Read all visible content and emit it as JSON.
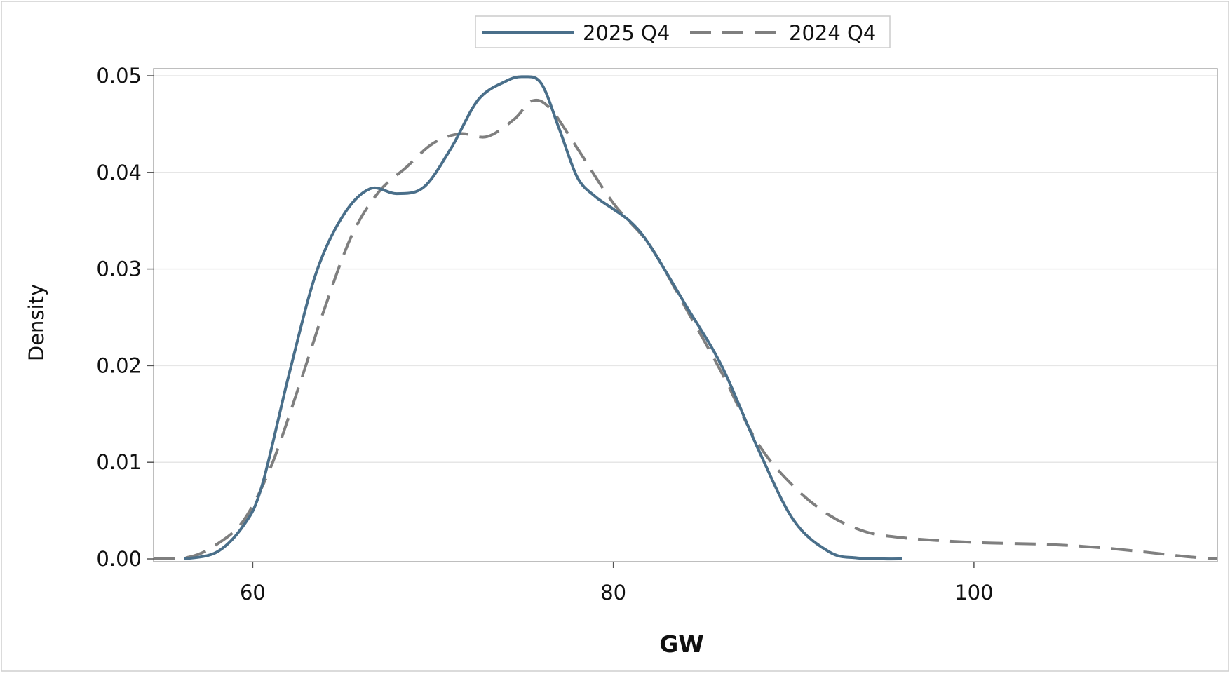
{
  "chart_data": {
    "type": "line",
    "title": "",
    "xlabel": "GW",
    "ylabel": "Density",
    "xlim": [
      54.5,
      113.5
    ],
    "ylim": [
      0,
      0.05
    ],
    "x_ticks": [
      60,
      80,
      100
    ],
    "x_tick_labels": [
      "60",
      "80",
      "100"
    ],
    "y_ticks": [
      0,
      0.01,
      0.02,
      0.03,
      0.04,
      0.05
    ],
    "y_tick_labels": [
      "0.00",
      "0.01",
      "0.02",
      "0.03",
      "0.04",
      "0.05"
    ],
    "grid": "horizontal",
    "legend_position": "top-center",
    "series": [
      {
        "name": "2025 Q4",
        "style": "solid",
        "color": "#4a6f8a",
        "x": [
          56.2,
          58,
          59.5,
          60.5,
          62,
          63.5,
          65,
          66.5,
          68,
          69.5,
          71,
          72.5,
          74,
          75,
          76,
          77,
          78,
          79,
          80,
          81,
          82,
          84,
          86,
          88,
          90,
          92,
          93.5,
          95,
          96
        ],
        "y": [
          0.0,
          0.0007,
          0.0035,
          0.0075,
          0.019,
          0.0295,
          0.0355,
          0.0383,
          0.0378,
          0.0385,
          0.0425,
          0.0475,
          0.0494,
          0.0499,
          0.0492,
          0.0445,
          0.0395,
          0.0375,
          0.0362,
          0.0348,
          0.0325,
          0.0263,
          0.02,
          0.0115,
          0.004,
          0.0007,
          0.0001,
          0.0,
          0.0
        ]
      },
      {
        "name": "2024 Q4",
        "style": "dashed",
        "color": "#7f7f7f",
        "x": [
          54.5,
          56.5,
          58,
          59.5,
          61,
          62.5,
          64,
          65.5,
          67,
          68.5,
          70,
          71.5,
          73,
          74.5,
          75.5,
          76.5,
          78,
          80,
          82,
          84,
          86,
          88,
          90,
          92,
          94,
          96,
          98,
          100,
          102,
          104,
          106,
          108,
          110,
          112,
          113.5
        ],
        "y": [
          0.0,
          0.0002,
          0.0015,
          0.004,
          0.0095,
          0.0175,
          0.026,
          0.0335,
          0.038,
          0.0405,
          0.043,
          0.044,
          0.0437,
          0.0455,
          0.0474,
          0.0466,
          0.0425,
          0.0368,
          0.0325,
          0.026,
          0.0193,
          0.012,
          0.0075,
          0.0045,
          0.0028,
          0.0022,
          0.0019,
          0.0017,
          0.0016,
          0.0015,
          0.0013,
          0.001,
          0.0006,
          0.0002,
          0.0
        ]
      }
    ]
  }
}
